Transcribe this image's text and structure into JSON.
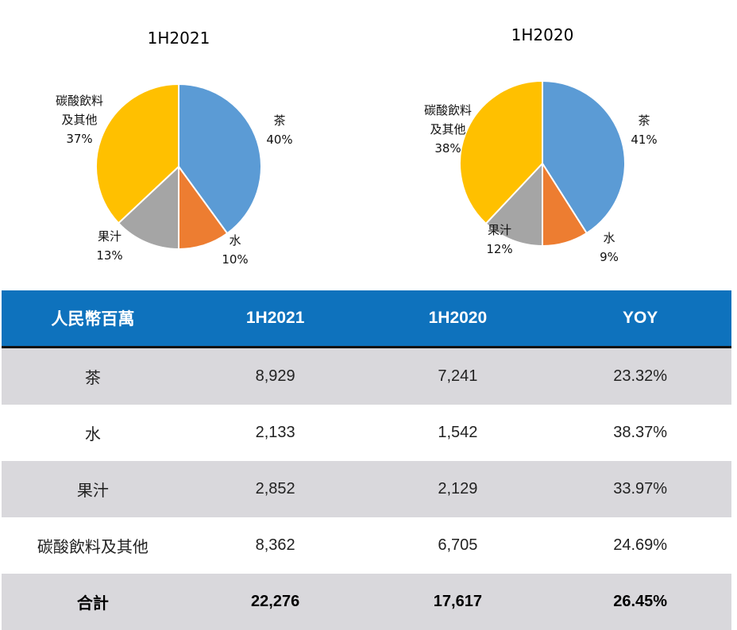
{
  "chart_data": [
    {
      "type": "pie",
      "title": "1H2021",
      "slices": [
        {
          "label": "茶",
          "value": 40,
          "pct_label": "40%",
          "color": "#5b9bd5"
        },
        {
          "label": "水",
          "value": 10,
          "pct_label": "10%",
          "color": "#ed7d31"
        },
        {
          "label": "果汁",
          "value": 13,
          "pct_label": "13%",
          "color": "#a5a5a5"
        },
        {
          "label": "碳酸飲料\n及其他",
          "value": 37,
          "pct_label": "37%",
          "color": "#ffc000"
        }
      ]
    },
    {
      "type": "pie",
      "title": "1H2020",
      "slices": [
        {
          "label": "茶",
          "value": 41,
          "pct_label": "41%",
          "color": "#5b9bd5"
        },
        {
          "label": "水",
          "value": 9,
          "pct_label": "9%",
          "color": "#ed7d31"
        },
        {
          "label": "果汁",
          "value": 12,
          "pct_label": "12%",
          "color": "#a5a5a5"
        },
        {
          "label": "碳酸飲料\n及其他",
          "value": 38,
          "pct_label": "38%",
          "color": "#ffc000"
        }
      ]
    }
  ],
  "table": {
    "headers": [
      "人民幣百萬",
      "1H2021",
      "1H2020",
      "YOY"
    ],
    "header_color": "#0e72bd",
    "rows": [
      [
        "茶",
        "8,929",
        "7,241",
        "23.32%"
      ],
      [
        "水",
        "2,133",
        "1,542",
        "38.37%"
      ],
      [
        "果汁",
        "2,852",
        "2,129",
        "33.97%"
      ],
      [
        "碳酸飲料及其他",
        "8,362",
        "6,705",
        "24.69%"
      ],
      [
        "合計",
        "22,276",
        "17,617",
        "26.45%"
      ]
    ]
  }
}
